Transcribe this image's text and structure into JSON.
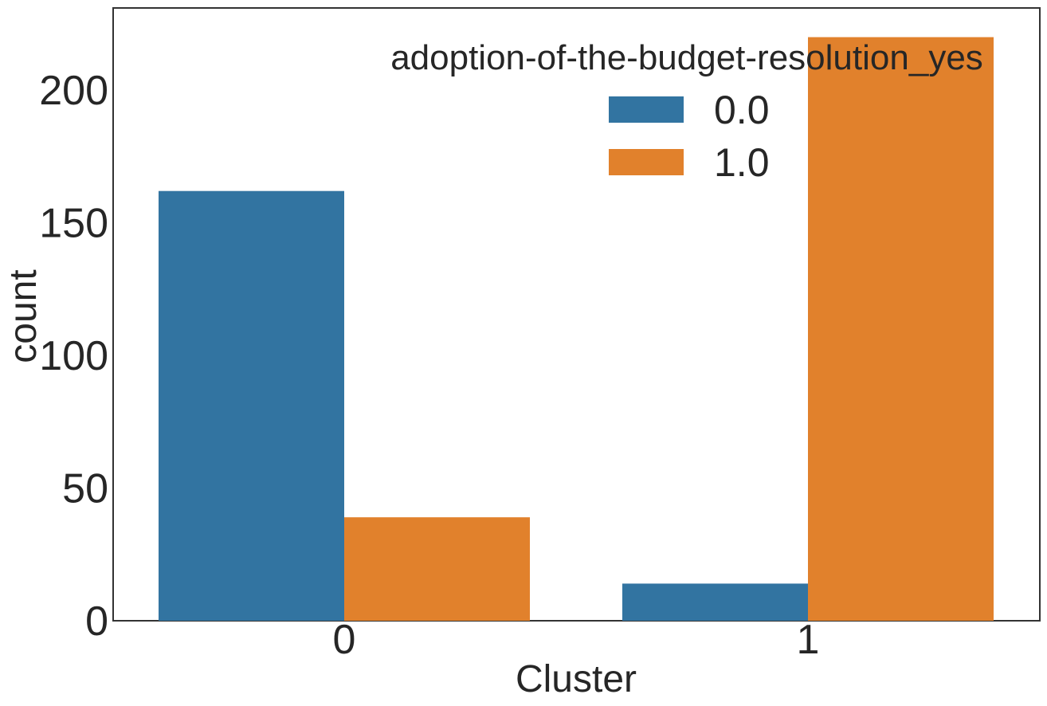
{
  "chart_data": {
    "type": "bar",
    "title": "",
    "xlabel": "Cluster",
    "ylabel": "count",
    "categories": [
      "0",
      "1"
    ],
    "series": [
      {
        "name": "0.0",
        "color": "#3274a1",
        "values": [
          162,
          14
        ]
      },
      {
        "name": "1.0",
        "color": "#e1812c",
        "values": [
          39,
          220
        ]
      }
    ],
    "ylim": [
      0,
      231
    ],
    "yticks": [
      0,
      50,
      100,
      150,
      200
    ],
    "grid": false,
    "legend": {
      "title": "adoption-of-the-budget-resolution_yes",
      "placement": "top-right"
    }
  }
}
